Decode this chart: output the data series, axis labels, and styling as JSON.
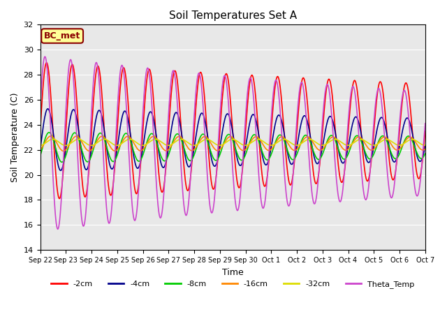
{
  "title": "Soil Temperatures Set A",
  "xlabel": "Time",
  "ylabel": "Soil Temperature (C)",
  "ylim": [
    14,
    32
  ],
  "yticks": [
    14,
    16,
    18,
    20,
    22,
    24,
    26,
    28,
    30,
    32
  ],
  "xtick_labels": [
    "Sep 22",
    "Sep 23",
    "Sep 24",
    "Sep 25",
    "Sep 26",
    "Sep 27",
    "Sep 28",
    "Sep 29",
    "Sep 30",
    "Oct 1",
    "Oct 2",
    "Oct 3",
    "Oct 4",
    "Oct 5",
    "Oct 6",
    "Oct 7"
  ],
  "background_color": "#e8e8e8",
  "annotation_text": "BC_met",
  "annotation_bg": "#ffff99",
  "annotation_border": "#8b0000",
  "series": {
    "-2cm": {
      "color": "#ff0000",
      "amplitude": 5.5,
      "mean": 23.5,
      "phase": 0.0,
      "amp_decay": 0.025
    },
    "-4cm": {
      "color": "#00008b",
      "amplitude": 2.5,
      "mean": 22.8,
      "phase": 0.3,
      "amp_decay": 0.025
    },
    "-8cm": {
      "color": "#00cc00",
      "amplitude": 1.2,
      "mean": 22.2,
      "phase": 0.6,
      "amp_decay": 0.02
    },
    "-16cm": {
      "color": "#ff8800",
      "amplitude": 0.6,
      "mean": 22.5,
      "phase": 1.0,
      "amp_decay": 0.01
    },
    "-32cm": {
      "color": "#dddd00",
      "amplitude": 0.25,
      "mean": 22.6,
      "phase": 1.5,
      "amp_decay": 0.005
    },
    "Theta_Temp": {
      "color": "#cc44cc",
      "amplitude": 7.0,
      "mean": 22.5,
      "phase": -0.4,
      "amp_decay": 0.035
    }
  },
  "legend_order": [
    "-2cm",
    "-4cm",
    "-8cm",
    "-16cm",
    "-32cm",
    "Theta_Temp"
  ]
}
